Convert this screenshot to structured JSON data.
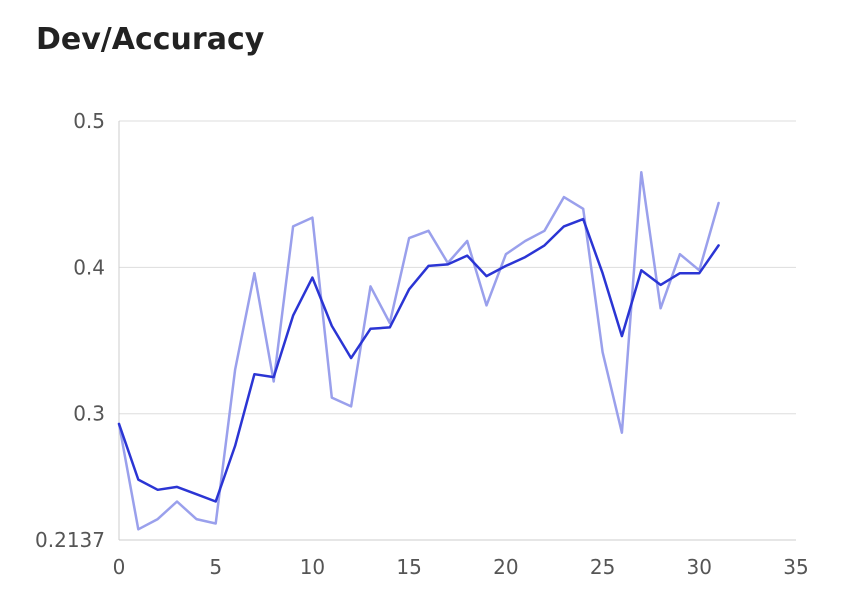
{
  "chart_data": {
    "type": "line",
    "title": "Dev/Accuracy",
    "xlabel": "",
    "ylabel": "",
    "xlim": [
      0,
      35
    ],
    "ylim": [
      0.2137,
      0.5
    ],
    "x_ticks": [
      "0",
      "5",
      "10",
      "15",
      "20",
      "25",
      "30",
      "35"
    ],
    "x_tick_values": [
      0,
      5,
      10,
      15,
      20,
      25,
      30,
      35
    ],
    "y_ticks": [
      "0.2137",
      "0.3",
      "0.4",
      "0.5"
    ],
    "y_tick_values": [
      0.2137,
      0.3,
      0.4,
      0.5
    ],
    "grid": "horizontal",
    "series": [
      {
        "color": "#9aa0ec",
        "x": [
          0,
          1,
          2,
          3,
          4,
          5,
          6,
          7,
          8,
          9,
          10,
          11,
          12,
          13,
          14,
          15,
          16,
          17,
          18,
          19,
          20,
          21,
          22,
          23,
          24,
          25,
          26,
          27,
          28,
          29,
          30,
          31
        ],
        "values": [
          0.293,
          0.221,
          0.228,
          0.24,
          0.228,
          0.225,
          0.33,
          0.396,
          0.322,
          0.428,
          0.434,
          0.311,
          0.305,
          0.387,
          0.362,
          0.42,
          0.425,
          0.403,
          0.418,
          0.374,
          0.409,
          0.418,
          0.425,
          0.448,
          0.44,
          0.342,
          0.287,
          0.465,
          0.372,
          0.409,
          0.398,
          0.444
        ]
      },
      {
        "color": "#2b35d4",
        "x": [
          0,
          1,
          2,
          3,
          4,
          5,
          6,
          7,
          8,
          9,
          10,
          11,
          12,
          13,
          14,
          15,
          16,
          17,
          18,
          19,
          20,
          21,
          22,
          23,
          24,
          25,
          26,
          27,
          28,
          29,
          30,
          31
        ],
        "values": [
          0.293,
          0.255,
          0.248,
          0.25,
          0.245,
          0.24,
          0.278,
          0.327,
          0.325,
          0.367,
          0.393,
          0.36,
          0.338,
          0.358,
          0.359,
          0.385,
          0.401,
          0.402,
          0.408,
          0.394,
          0.401,
          0.407,
          0.415,
          0.428,
          0.433,
          0.396,
          0.353,
          0.398,
          0.388,
          0.396,
          0.396,
          0.415
        ]
      }
    ]
  }
}
